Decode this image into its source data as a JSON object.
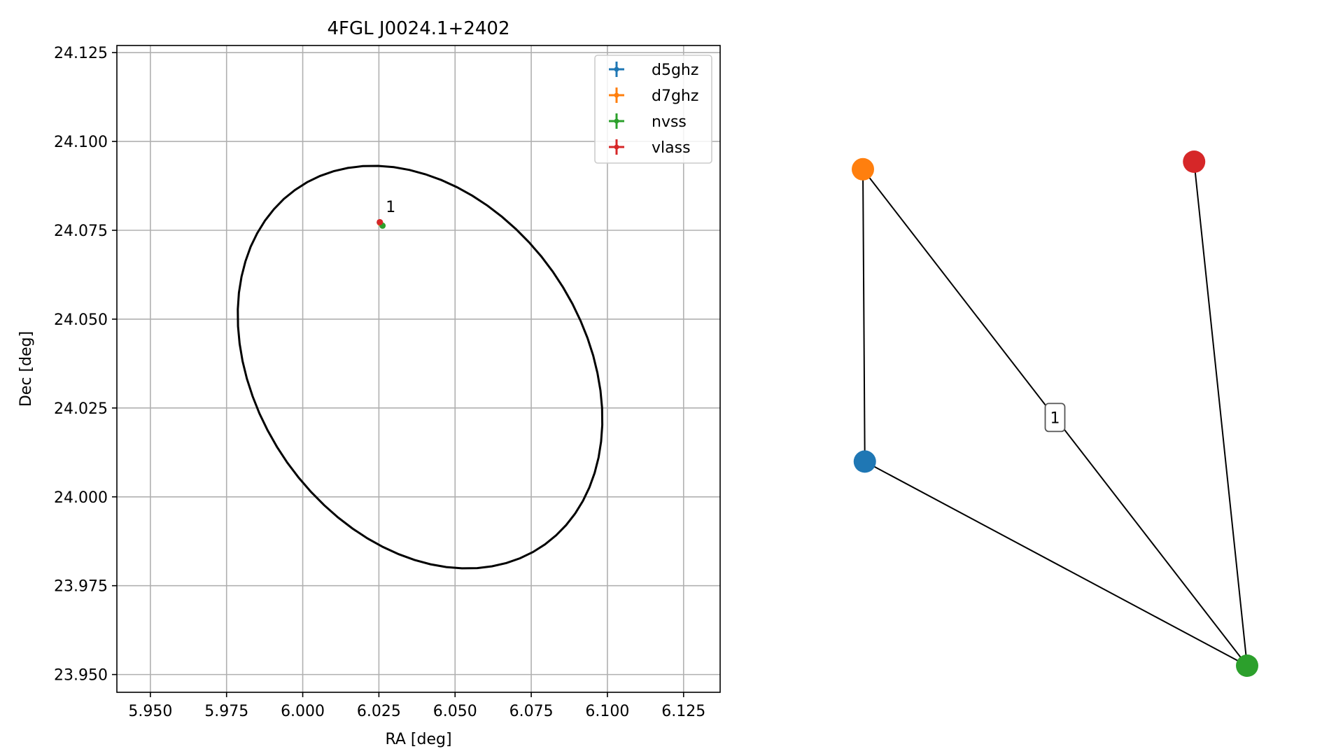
{
  "chart_data": [
    {
      "type": "scatter",
      "title": "4FGL J0024.1+2402",
      "xlabel": "RA [deg]",
      "ylabel": "Dec [deg]",
      "xlim": [
        5.939,
        6.137
      ],
      "ylim": [
        23.945,
        24.127
      ],
      "xticks": [
        5.95,
        5.975,
        6.0,
        6.025,
        6.05,
        6.075,
        6.1,
        6.125
      ],
      "xtick_labels": [
        "5.950",
        "5.975",
        "6.000",
        "6.025",
        "6.050",
        "6.075",
        "6.100",
        "6.125"
      ],
      "yticks": [
        23.95,
        23.975,
        24.0,
        24.025,
        24.05,
        24.075,
        24.1,
        24.125
      ],
      "ytick_labels": [
        "23.950",
        "23.975",
        "24.000",
        "24.025",
        "24.050",
        "24.075",
        "24.100",
        "24.125"
      ],
      "grid": true,
      "legend_position": "top-right",
      "series": [
        {
          "name": "d5ghz",
          "color": "#1f77b4",
          "points": [
            {
              "x": 6.0253,
              "y": 24.0772
            }
          ]
        },
        {
          "name": "d7ghz",
          "color": "#ff7f0e",
          "points": [
            {
              "x": 6.0254,
              "y": 24.0771
            }
          ]
        },
        {
          "name": "nvss",
          "color": "#2ca02c",
          "points": [
            {
              "x": 6.0262,
              "y": 24.0763
            }
          ]
        },
        {
          "name": "vlass",
          "color": "#d62728",
          "points": [
            {
              "x": 6.0253,
              "y": 24.0773
            }
          ]
        }
      ],
      "annotations": [
        {
          "text": "1",
          "x": 6.0268,
          "y": 24.0805
        }
      ],
      "ellipse": {
        "center_ra": 6.0385,
        "center_dec": 24.0365,
        "semi_axis_a": 0.0655,
        "semi_axis_b": 0.05,
        "angle_deg": -39,
        "color": "#000000"
      }
    },
    {
      "type": "network",
      "nodes": [
        {
          "id": "d5ghz",
          "color": "#1f77b4",
          "x": 0.005,
          "y": 0.405
        },
        {
          "id": "d7ghz",
          "color": "#ff7f0e",
          "x": 0.0,
          "y": 0.985
        },
        {
          "id": "nvss",
          "color": "#2ca02c",
          "x": 1.0,
          "y": 0.0
        },
        {
          "id": "vlass",
          "color": "#d62728",
          "x": 0.862,
          "y": 1.0
        }
      ],
      "edges": [
        {
          "source": "d5ghz",
          "target": "d7ghz"
        },
        {
          "source": "d5ghz",
          "target": "nvss"
        },
        {
          "source": "d7ghz",
          "target": "nvss"
        },
        {
          "source": "vlass",
          "target": "nvss"
        }
      ],
      "edge_labels": [
        {
          "text": "1",
          "source": "d7ghz",
          "target": "nvss"
        }
      ]
    }
  ]
}
